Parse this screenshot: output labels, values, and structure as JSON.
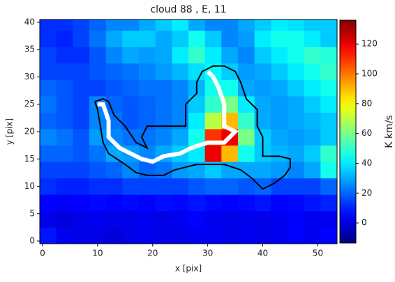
{
  "chart_data": {
    "type": "heatmap",
    "title": "cloud 88 , E, 11",
    "x_label": "x [pix]",
    "y_label": "y [pix]",
    "colorbar_label": "K km/s",
    "colormap": "jet",
    "xlim": [
      -0.5,
      53.5
    ],
    "ylim": [
      -0.5,
      40.5
    ],
    "xticks": [
      0,
      10,
      20,
      30,
      40,
      50
    ],
    "yticks": [
      0,
      5,
      10,
      15,
      20,
      25,
      30,
      35,
      40
    ],
    "clim": [
      -13.5,
      136
    ],
    "cticks": [
      0,
      20,
      40,
      60,
      80,
      100,
      120
    ],
    "x_edges": [
      -0.5,
      2.5,
      5.5,
      8.5,
      11.5,
      14.5,
      17.5,
      20.5,
      23.5,
      26.5,
      29.5,
      32.5,
      35.5,
      38.5,
      41.5,
      44.5,
      47.5,
      50.5,
      53.5
    ],
    "y_edges": [
      -0.5,
      2.5,
      5.5,
      8.5,
      11.5,
      14.5,
      17.5,
      20.5,
      23.5,
      26.5,
      29.5,
      32.5,
      35.5,
      38.5,
      40.5
    ],
    "z": [
      [
        8,
        3,
        2,
        2,
        0,
        2,
        3,
        2,
        2,
        3,
        3,
        2,
        3,
        2,
        3,
        5,
        3,
        5
      ],
      [
        2,
        0,
        2,
        3,
        2,
        2,
        3,
        2,
        3,
        5,
        3,
        2,
        3,
        2,
        3,
        5,
        3,
        3
      ],
      [
        5,
        4,
        5,
        6,
        5,
        6,
        5,
        7,
        6,
        8,
        6,
        5,
        6,
        8,
        5,
        6,
        8,
        10
      ],
      [
        12,
        10,
        10,
        12,
        12,
        15,
        15,
        15,
        15,
        18,
        20,
        20,
        18,
        20,
        15,
        15,
        15,
        20
      ],
      [
        15,
        15,
        15,
        18,
        20,
        25,
        20,
        22,
        28,
        30,
        35,
        30,
        30,
        30,
        28,
        25,
        30,
        45
      ],
      [
        20,
        20,
        18,
        22,
        30,
        28,
        25,
        30,
        35,
        40,
        120,
        90,
        45,
        35,
        32,
        30,
        35,
        50
      ],
      [
        25,
        22,
        18,
        28,
        25,
        22,
        22,
        25,
        30,
        45,
        110,
        120,
        60,
        35,
        30,
        28,
        30,
        35
      ],
      [
        20,
        18,
        15,
        25,
        22,
        18,
        20,
        22,
        25,
        40,
        70,
        90,
        50,
        30,
        28,
        30,
        32,
        35
      ],
      [
        22,
        18,
        15,
        25,
        20,
        18,
        20,
        22,
        25,
        35,
        50,
        60,
        40,
        30,
        28,
        30,
        35,
        40
      ],
      [
        20,
        18,
        15,
        15,
        18,
        20,
        22,
        22,
        25,
        32,
        45,
        45,
        30,
        28,
        30,
        35,
        40,
        45
      ],
      [
        15,
        15,
        15,
        18,
        20,
        22,
        25,
        28,
        32,
        38,
        42,
        35,
        28,
        30,
        35,
        40,
        45,
        50
      ],
      [
        15,
        12,
        12,
        18,
        25,
        30,
        28,
        30,
        40,
        50,
        40,
        30,
        25,
        35,
        40,
        45,
        50,
        48
      ],
      [
        12,
        10,
        15,
        22,
        30,
        35,
        35,
        30,
        35,
        45,
        35,
        25,
        28,
        40,
        45,
        45,
        40,
        35
      ],
      [
        12,
        12,
        15,
        20,
        25,
        25,
        30,
        35,
        40,
        30,
        25,
        25,
        30,
        35,
        40,
        38,
        35,
        35
      ]
    ],
    "contour": {
      "color": "#000000",
      "x": [
        9.5,
        10,
        11,
        12,
        15,
        17,
        19,
        22,
        24,
        26,
        28,
        33,
        36,
        38,
        40,
        42,
        44,
        45,
        45,
        43,
        40,
        40,
        39,
        39,
        37,
        36,
        35,
        33,
        31,
        29,
        28,
        28,
        26,
        26,
        19,
        18,
        19,
        17,
        15,
        13,
        12,
        11,
        9.5
      ],
      "y": [
        25.5,
        24,
        18,
        16,
        14,
        12.5,
        12,
        12,
        13,
        13.5,
        14,
        14,
        13,
        11.5,
        9.5,
        10.5,
        12,
        13.5,
        15,
        15.5,
        15.5,
        19,
        21,
        24,
        26,
        29,
        31,
        32,
        32,
        31,
        29,
        27,
        25,
        21,
        21,
        19,
        17,
        18,
        21,
        23,
        25.5,
        26,
        25.5
      ]
    },
    "skeleton": {
      "color": "#ffffff",
      "x": [
        10,
        11,
        12,
        12,
        14,
        16,
        18,
        20,
        22,
        25,
        27,
        30,
        33,
        35,
        33,
        33,
        32,
        31,
        30
      ],
      "y": [
        25,
        25,
        22,
        19,
        17,
        16,
        15,
        14.5,
        15.5,
        16,
        17,
        18,
        18,
        20,
        21,
        25,
        28,
        30,
        31
      ]
    }
  }
}
